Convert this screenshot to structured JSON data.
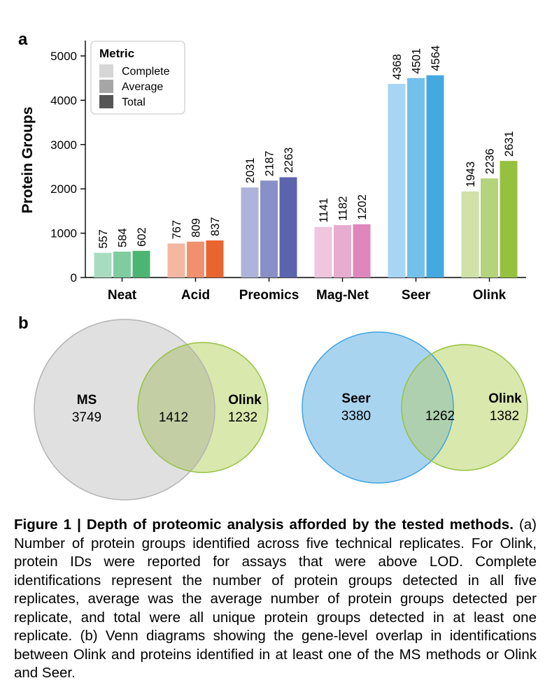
{
  "chart_data": [
    {
      "type": "bar",
      "panel_label": "a",
      "title": "",
      "xlabel": "",
      "ylabel": "Protein Groups",
      "ylim": [
        0,
        5000
      ],
      "yticks": [
        "0",
        "1000",
        "2000",
        "3000",
        "4000",
        "5000"
      ],
      "categories": [
        "Neat",
        "Acid",
        "Preomics",
        "Mag-Net",
        "Seer",
        "Olink"
      ],
      "series": [
        {
          "name": "Complete",
          "values": [
            557,
            767,
            2031,
            1141,
            4368,
            1943
          ]
        },
        {
          "name": "Average",
          "values": [
            584,
            809,
            2187,
            1182,
            4501,
            2236
          ]
        },
        {
          "name": "Total",
          "values": [
            602,
            837,
            2263,
            1202,
            4564,
            2631
          ]
        }
      ],
      "legend": {
        "title": "Metric",
        "position": "top-left",
        "items": [
          "Complete",
          "Average",
          "Total"
        ],
        "swatch_colors": [
          "#d6d6d6",
          "#a6a6a6",
          "#555555"
        ]
      },
      "bar_colors": [
        [
          "#a8dcc0",
          "#7fcc9f",
          "#4cb574"
        ],
        [
          "#f3b7a2",
          "#f0906f",
          "#e9652f"
        ],
        [
          "#adb3d9",
          "#8890c7",
          "#5c64ae"
        ],
        [
          "#efc6de",
          "#e8acd0",
          "#df86bd"
        ],
        [
          "#a6d6f3",
          "#74c0ec",
          "#44a9e1"
        ],
        [
          "#cfe2a7",
          "#b3d47a",
          "#96c13f"
        ]
      ]
    },
    {
      "type": "venn",
      "panel_label": "b",
      "sets": [
        {
          "left_label": "MS",
          "left_value": "3749",
          "overlap_value": "1412",
          "right_label": "Olink",
          "right_value": "1232",
          "left_fill": "#e0e0e0",
          "left_stroke": "#b3b3b3",
          "right_fill": "#d9e8ad",
          "right_stroke": "#95c13e",
          "overlap_fill": "#c3cea4"
        },
        {
          "left_label": "Seer",
          "left_value": "3380",
          "overlap_value": "1262",
          "right_label": "Olink",
          "right_value": "1382",
          "left_fill": "#a9d4f0",
          "left_stroke": "#3fa3dd",
          "right_fill": "#d9e8ad",
          "right_stroke": "#95c13e",
          "overlap_fill": "#afd0af"
        }
      ]
    }
  ],
  "caption": {
    "bold_text": "Figure 1 | Depth of proteomic analysis afforded by the tested methods.",
    "body_text": " (a) Number of protein groups identified across five technical replicates. For Olink, protein IDs were reported for assays that were above LOD. Complete identifications represent the number of protein groups detected in all five replicates, average was the average number of protein groups detected per replicate, and total were all unique protein groups detected in at least one replicate. (b) Venn diagrams showing the gene-level overlap in identifications between Olink and proteins identified in at least one of the MS methods or Olink and Seer."
  }
}
